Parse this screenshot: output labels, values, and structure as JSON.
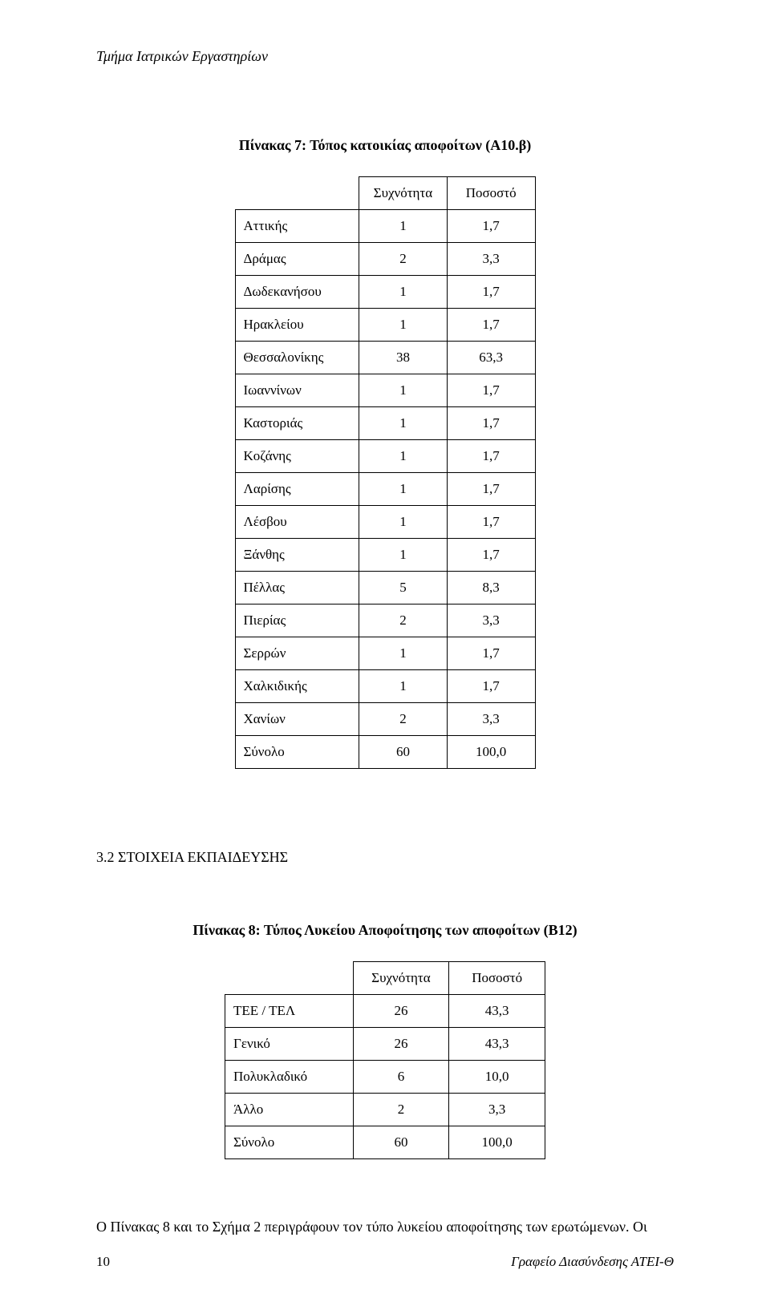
{
  "header": {
    "department": "Τμήμα Ιατρικών Εργαστηρίων"
  },
  "table7": {
    "title": "Πίνακας 7: Τόπος κατοικίας αποφοίτων (Α10.β)",
    "columns": [
      "Συχνότητα",
      "Ποσοστό"
    ],
    "rows": [
      {
        "label": "Αττικής",
        "freq": "1",
        "pct": "1,7"
      },
      {
        "label": "Δράμας",
        "freq": "2",
        "pct": "3,3"
      },
      {
        "label": "Δωδεκανήσου",
        "freq": "1",
        "pct": "1,7"
      },
      {
        "label": "Ηρακλείου",
        "freq": "1",
        "pct": "1,7"
      },
      {
        "label": "Θεσσαλονίκης",
        "freq": "38",
        "pct": "63,3"
      },
      {
        "label": "Ιωαννίνων",
        "freq": "1",
        "pct": "1,7"
      },
      {
        "label": "Καστοριάς",
        "freq": "1",
        "pct": "1,7"
      },
      {
        "label": "Κοζάνης",
        "freq": "1",
        "pct": "1,7"
      },
      {
        "label": "Λαρίσης",
        "freq": "1",
        "pct": "1,7"
      },
      {
        "label": "Λέσβου",
        "freq": "1",
        "pct": "1,7"
      },
      {
        "label": "Ξάνθης",
        "freq": "1",
        "pct": "1,7"
      },
      {
        "label": "Πέλλας",
        "freq": "5",
        "pct": "8,3"
      },
      {
        "label": "Πιερίας",
        "freq": "2",
        "pct": "3,3"
      },
      {
        "label": "Σερρών",
        "freq": "1",
        "pct": "1,7"
      },
      {
        "label": "Χαλκιδικής",
        "freq": "1",
        "pct": "1,7"
      },
      {
        "label": "Χανίων",
        "freq": "2",
        "pct": "3,3"
      },
      {
        "label": "Σύνολο",
        "freq": "60",
        "pct": "100,0"
      }
    ]
  },
  "section": {
    "heading": "3.2 ΣΤΟΙΧΕΙΑ ΕΚΠΑΙΔΕΥΣΗΣ"
  },
  "table8": {
    "title": "Πίνακας 8:  Τύπος Λυκείου Αποφοίτησης των αποφοίτων (Β12)",
    "columns": [
      "Συχνότητα",
      "Ποσοστό"
    ],
    "rows": [
      {
        "label": "ΤΕΕ / ΤΕΛ",
        "freq": "26",
        "pct": "43,3"
      },
      {
        "label": "Γενικό",
        "freq": "26",
        "pct": "43,3"
      },
      {
        "label": "Πολυκλαδικό",
        "freq": "6",
        "pct": "10,0"
      },
      {
        "label": "Άλλο",
        "freq": "2",
        "pct": "3,3"
      },
      {
        "label": "Σύνολο",
        "freq": "60",
        "pct": "100,0"
      }
    ]
  },
  "body": {
    "text": "Ο Πίνακας 8 και το Σχήμα 2 περιγράφουν τον τύπο λυκείου αποφοίτησης των ερωτώμενων. Οι"
  },
  "footer": {
    "page": "10",
    "org": "Γραφείο Διασύνδεσης ΑΤΕΙ-Θ"
  },
  "style": {
    "text_color": "#000000",
    "background_color": "#ffffff",
    "border_color": "#000000",
    "font_family": "Times New Roman",
    "title_fontsize": 18,
    "cell_fontsize": 17
  }
}
